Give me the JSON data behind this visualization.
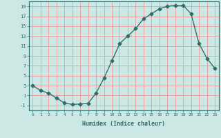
{
  "x": [
    0,
    1,
    2,
    3,
    4,
    5,
    6,
    7,
    8,
    9,
    10,
    11,
    12,
    13,
    14,
    15,
    16,
    17,
    18,
    19,
    20,
    21,
    22,
    23
  ],
  "y": [
    3,
    2,
    1.5,
    0.5,
    -0.5,
    -0.8,
    -0.7,
    -0.6,
    1.5,
    4.5,
    8,
    11.5,
    13,
    14.5,
    16.5,
    17.5,
    18.5,
    19,
    19.2,
    19.2,
    17.5,
    11.5,
    8.5,
    6.5
  ],
  "line_color": "#2d6e6e",
  "marker": "D",
  "marker_size": 2.5,
  "bg_color": "#cce8e4",
  "grid_color": "#f0a0a0",
  "xlabel": "Humidex (Indice chaleur)",
  "xlim": [
    -0.5,
    23.5
  ],
  "ylim": [
    -2,
    20
  ],
  "xticks": [
    0,
    1,
    2,
    3,
    4,
    5,
    6,
    7,
    8,
    9,
    10,
    11,
    12,
    13,
    14,
    15,
    16,
    17,
    18,
    19,
    20,
    21,
    22,
    23
  ],
  "yticks": [
    -1,
    1,
    3,
    5,
    7,
    9,
    11,
    13,
    15,
    17,
    19
  ]
}
